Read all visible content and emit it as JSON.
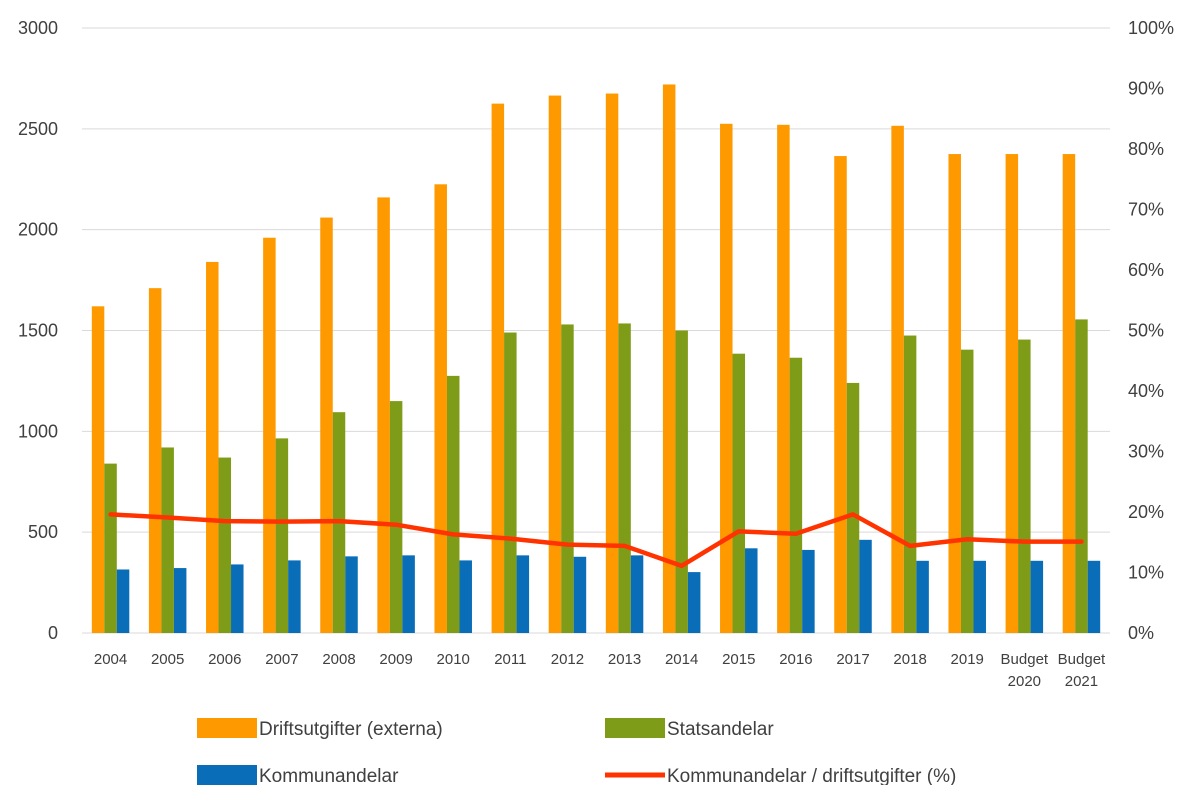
{
  "chart_data": {
    "type": "bar",
    "categories": [
      [
        "2004"
      ],
      [
        "2005"
      ],
      [
        "2006"
      ],
      [
        "2007"
      ],
      [
        "2008"
      ],
      [
        "2009"
      ],
      [
        "2010"
      ],
      [
        "2011"
      ],
      [
        "2012"
      ],
      [
        "2013"
      ],
      [
        "2014"
      ],
      [
        "2015"
      ],
      [
        "2016"
      ],
      [
        "2017"
      ],
      [
        "2018"
      ],
      [
        "2019"
      ],
      [
        "Budget",
        "2020"
      ],
      [
        "Budget",
        "2021"
      ]
    ],
    "series": [
      {
        "name": "Driftsutgifter (externa)",
        "type": "bar",
        "axis": "left",
        "color": "#ff9900",
        "values": [
          1620,
          1710,
          1840,
          1960,
          2060,
          2160,
          2225,
          2625,
          2665,
          2675,
          2720,
          2525,
          2520,
          2365,
          2515,
          2375,
          2375,
          2375
        ]
      },
      {
        "name": "Statsandelar",
        "type": "bar",
        "axis": "left",
        "color": "#7f9c19",
        "values": [
          840,
          920,
          870,
          965,
          1095,
          1150,
          1275,
          1490,
          1530,
          1535,
          1500,
          1385,
          1365,
          1240,
          1475,
          1405,
          1455,
          1555
        ]
      },
      {
        "name": "Kommunandelar",
        "type": "bar",
        "axis": "left",
        "color": "#0a6db8",
        "values": [
          315,
          322,
          340,
          360,
          380,
          385,
          360,
          385,
          378,
          385,
          302,
          420,
          412,
          462,
          358,
          358,
          358,
          358
        ]
      },
      {
        "name": "Kommunandelar / driftsutgifter (%)",
        "type": "line",
        "axis": "right",
        "color": "#ff3300",
        "values": [
          19.6,
          19.1,
          18.5,
          18.4,
          18.5,
          17.9,
          16.3,
          15.6,
          14.6,
          14.4,
          11.1,
          16.8,
          16.4,
          19.6,
          14.4,
          15.5,
          15.1,
          15.1
        ]
      }
    ],
    "y_left": {
      "min": 0,
      "max": 3000,
      "ticks": [
        0,
        500,
        1000,
        1500,
        2000,
        2500,
        3000
      ]
    },
    "y_right": {
      "min": 0,
      "max": 100,
      "ticks": [
        0,
        10,
        20,
        30,
        40,
        50,
        60,
        70,
        80,
        90,
        100
      ],
      "tick_labels": [
        "0%",
        "10%",
        "20%",
        "30%",
        "40%",
        "50%",
        "60%",
        "70%",
        "80%",
        "90%",
        "100%"
      ]
    },
    "grid": true,
    "legend_placement": "bottom"
  }
}
